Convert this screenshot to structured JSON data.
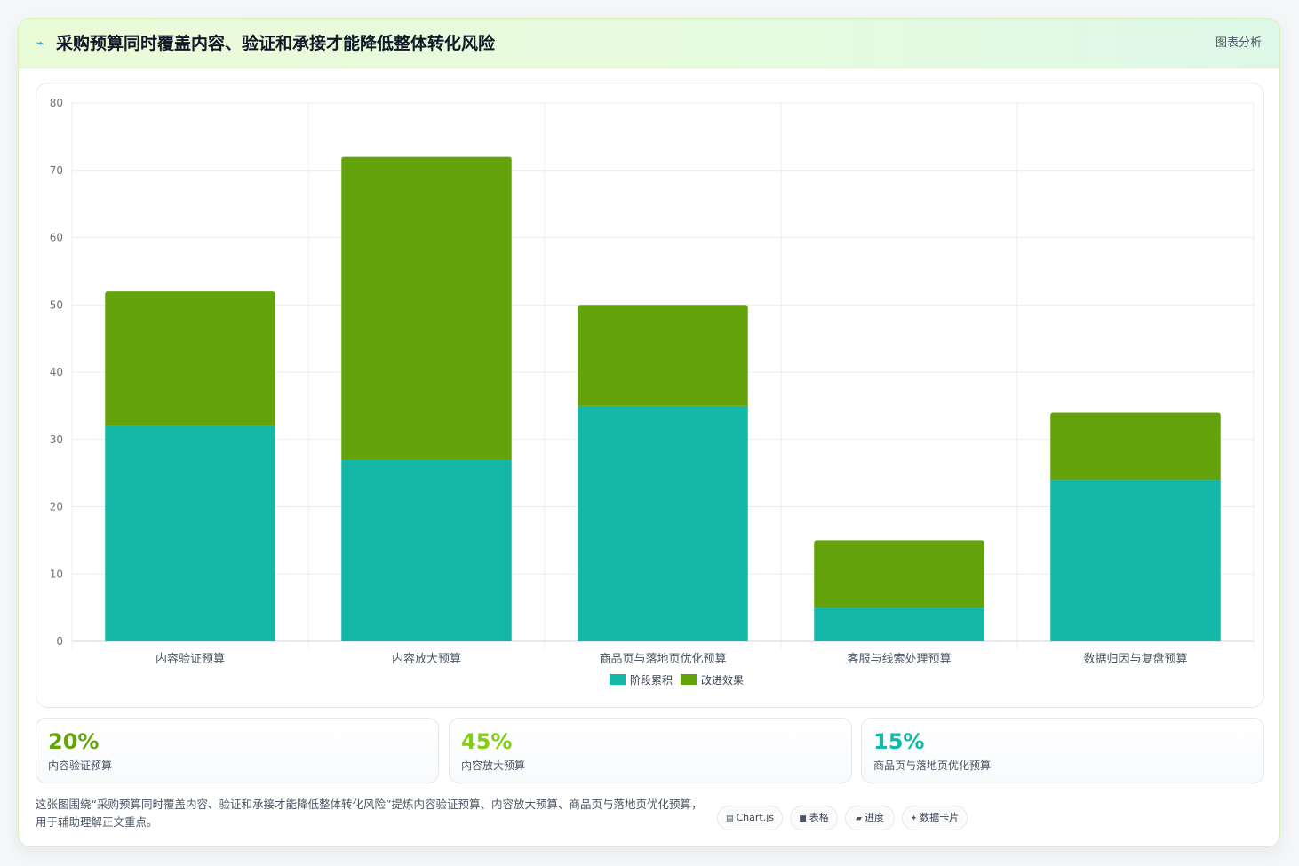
{
  "header": {
    "title": "采购预算同时覆盖内容、验证和承接才能降低整体转化风险",
    "action_label": "图表分析",
    "icon": "chart-line-icon"
  },
  "chart_data": {
    "type": "bar",
    "stacked": true,
    "categories": [
      "内容验证预算",
      "内容放大预算",
      "商品页与落地页优化预算",
      "客服与线索处理预算",
      "数据归因与复盘预算"
    ],
    "series": [
      {
        "name": "阶段累积",
        "values": [
          32,
          27,
          35,
          5,
          24
        ],
        "color": "#14b8a6"
      },
      {
        "name": "改进效果",
        "values": [
          20,
          45,
          15,
          10,
          10
        ],
        "color": "#65a30d"
      }
    ],
    "ylim": [
      0,
      80
    ],
    "yticks": [
      0,
      10,
      20,
      30,
      40,
      50,
      60,
      70,
      80
    ],
    "title": "",
    "xlabel": "",
    "ylabel": "",
    "grid": true,
    "legend_position": "bottom"
  },
  "stats": [
    {
      "value": "20%",
      "label": "内容验证预算",
      "color": "#65a30d"
    },
    {
      "value": "45%",
      "label": "内容放大预算",
      "color": "#84cc16"
    },
    {
      "value": "15%",
      "label": "商品页与落地页优化预算",
      "color": "#14b8a6"
    }
  ],
  "footnote": "这张图围绕“采购预算同时覆盖内容、验证和承接才能降低整体转化风险”提炼内容验证预算、内容放大预算、商品页与落地页优化预算，用于辅助理解正文重点。",
  "pills": [
    {
      "icon": "▤",
      "label": "Chart.js"
    },
    {
      "icon": "■",
      "label": "表格"
    },
    {
      "icon": "▰",
      "label": "进度"
    },
    {
      "icon": "✦",
      "label": "数据卡片"
    }
  ]
}
